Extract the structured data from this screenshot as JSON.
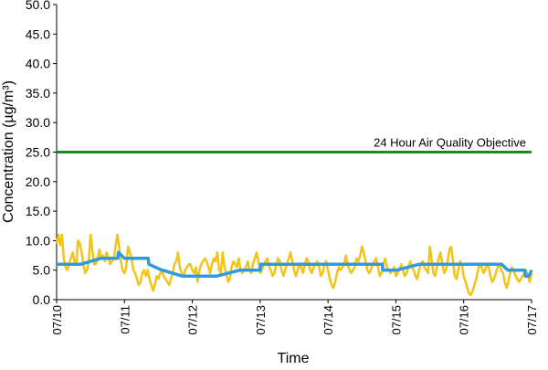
{
  "chart_data": {
    "type": "line",
    "title": "",
    "xlabel": "Time",
    "ylabel": "Concentration (µg/m³)",
    "ylim": [
      0,
      50
    ],
    "yticks": [
      "0.0",
      "5.0",
      "10.0",
      "15.0",
      "20.0",
      "25.0",
      "30.0",
      "35.0",
      "40.0",
      "45.0",
      "50.0"
    ],
    "xticks": [
      "07/10",
      "07/11",
      "07/12",
      "07/13",
      "07/14",
      "07/15",
      "07/16",
      "07/17"
    ],
    "x_range_days": [
      0,
      7
    ],
    "grid": false,
    "legend": "none",
    "colors": {
      "hourly": "#F2C418",
      "daily": "#2E9BE0",
      "objective": "#1E8A1E"
    },
    "objective": {
      "label": "24 Hour Air Quality Objective",
      "value": 25
    },
    "series": [
      {
        "values": [
          9.5,
          11.0,
          9.2,
          11.0,
          7.0,
          5.5,
          5.0,
          6.0,
          7.0,
          8.0,
          6.5,
          6.0,
          10.0,
          9.5,
          8.0,
          6.0,
          4.5,
          5.0,
          6.5,
          11.0,
          8.5,
          6.0,
          6.0,
          7.0,
          8.5,
          7.0,
          7.5,
          6.5,
          8.0,
          7.0,
          6.0,
          6.5,
          7.0,
          9.0,
          11.0,
          9.0,
          6.5,
          5.0,
          4.5,
          5.5,
          9.0,
          8.0,
          7.0,
          5.0,
          4.5,
          3.5,
          2.5,
          3.0,
          4.5,
          5.0,
          4.0,
          5.0,
          3.5,
          2.5,
          1.5,
          2.5,
          4.0,
          3.5,
          4.5,
          5.0,
          4.0,
          3.5,
          3.0,
          2.5,
          3.5,
          4.5,
          6.0,
          6.5,
          8.0,
          5.5,
          4.5,
          4.0,
          5.0,
          5.5,
          6.0,
          6.0,
          5.0,
          4.5,
          5.5,
          3.0,
          5.0,
          6.0,
          6.5,
          7.0,
          6.5,
          5.5,
          4.5,
          6.0,
          7.0,
          6.5,
          8.0,
          5.0,
          4.5,
          8.0,
          5.5,
          4.5,
          3.0,
          3.5,
          5.5,
          6.5,
          6.0,
          5.5,
          7.0,
          5.0,
          4.5,
          5.0,
          5.5,
          6.5,
          5.0,
          4.5,
          6.0,
          7.0,
          8.0,
          6.5,
          4.5,
          5.0,
          6.0,
          6.5,
          7.0,
          5.5,
          5.0,
          4.0,
          4.5,
          6.0,
          7.0,
          6.5,
          5.0,
          4.0,
          5.0,
          6.0,
          7.0,
          8.0,
          6.5,
          5.0,
          4.0,
          5.0,
          6.0,
          5.5,
          4.5,
          6.0,
          7.0,
          6.5,
          5.0,
          4.5,
          5.5,
          6.0,
          6.5,
          5.5,
          4.0,
          4.5,
          6.0,
          6.5,
          5.0,
          3.5,
          2.5,
          2.0,
          3.0,
          4.5,
          5.5,
          5.0,
          5.5,
          6.0,
          7.5,
          6.0,
          5.0,
          4.5,
          5.0,
          5.5,
          7.0,
          6.5,
          7.5,
          9.0,
          8.0,
          6.5,
          5.0,
          4.5,
          5.0,
          6.0,
          6.5,
          7.0,
          5.5,
          4.0,
          4.5,
          6.0,
          7.0,
          5.5,
          5.0,
          4.5,
          5.0,
          5.5,
          4.0,
          4.5,
          5.0,
          6.0,
          5.0,
          4.0,
          4.5,
          5.5,
          6.5,
          5.5,
          5.0,
          4.0,
          3.5,
          5.0,
          6.0,
          6.5,
          5.5,
          5.0,
          4.5,
          9.0,
          7.0,
          4.5,
          4.0,
          5.5,
          7.0,
          8.0,
          6.0,
          4.5,
          5.0,
          6.5,
          8.5,
          9.0,
          6.5,
          4.0,
          3.5,
          5.0,
          6.5,
          6.0,
          4.0,
          3.0,
          2.0,
          1.0,
          0.8,
          1.5,
          2.5,
          3.5,
          5.0,
          6.0,
          5.5,
          4.5,
          5.0,
          6.0,
          5.5,
          4.0,
          3.0,
          3.5,
          4.5,
          5.5,
          6.0,
          5.0,
          4.5,
          3.0,
          2.0,
          3.0,
          4.5,
          5.5,
          5.0,
          4.0,
          3.5,
          3.0,
          3.5,
          4.0,
          4.5,
          5.0,
          4.0,
          3.0,
          4.5
        ]
      },
      {
        "values": [
          6,
          6,
          6,
          7,
          7,
          7,
          8,
          7,
          7,
          7,
          6,
          5,
          5,
          4,
          4,
          4,
          4,
          5,
          5,
          5,
          6,
          6,
          6,
          6,
          6,
          6,
          6,
          6,
          6,
          6,
          6,
          6,
          6,
          6,
          5,
          5,
          5,
          6,
          6,
          6,
          6,
          6,
          6,
          6,
          6,
          6,
          6,
          6,
          6,
          6,
          6,
          5,
          5,
          5,
          5,
          5,
          5,
          5,
          4,
          4,
          4,
          5
        ]
      }
    ],
    "hourly_x_range_days": [
      0,
      7
    ],
    "daily_x_days": [
      0,
      0.35,
      0.36,
      0.65,
      0.66,
      0.9,
      0.91,
      1.0,
      1.01,
      1.35,
      1.36,
      1.55,
      1.56,
      1.85,
      1.86,
      2.35,
      2.36,
      2.7,
      2.71,
      3.0,
      3.01,
      3.35,
      3.36,
      3.65,
      3.66,
      4.0,
      4.01,
      4.1,
      4.11,
      4.3,
      4.31,
      4.65,
      4.66,
      4.8,
      4.81,
      5.0,
      5.01,
      5.35,
      5.36,
      5.65,
      5.66,
      5.85,
      5.86,
      6.0,
      6.01,
      6.3,
      6.31,
      6.45,
      6.46,
      6.55,
      6.56,
      6.65,
      6.66,
      6.75,
      6.76,
      6.85,
      6.86,
      6.9,
      6.91,
      6.95,
      6.96,
      7.0
    ]
  }
}
